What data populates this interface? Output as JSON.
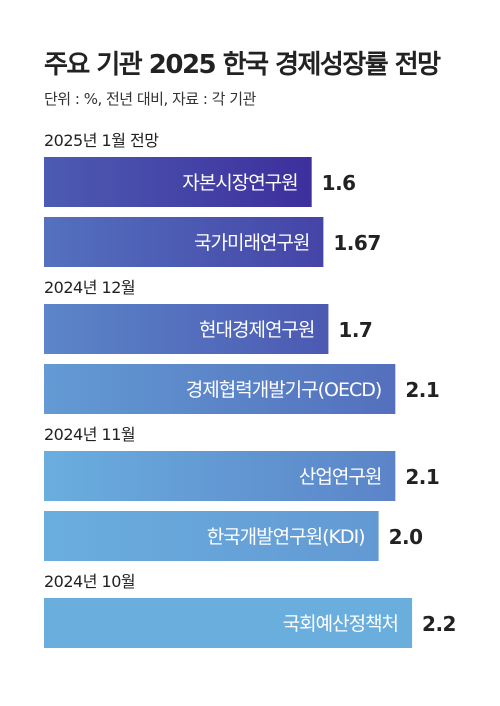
{
  "title": "주요 기관 2025 한국 경제성장률 전망",
  "subtitle": "단위 : %, 전년 대비, 자료 : 각 기관",
  "chart_data": {
    "type": "bar",
    "orientation": "horizontal",
    "title": "주요 기관 2025 한국 경제성장률 전망",
    "unit": "%",
    "xlim": [
      0,
      2.2
    ],
    "groups": [
      {
        "label": "2025년 1월 전망",
        "items": [
          {
            "category": "자본시장연구원",
            "value": 1.6,
            "value_label": "1.6"
          },
          {
            "category": "국가미래연구원",
            "value": 1.67,
            "value_label": "1.67"
          }
        ]
      },
      {
        "label": "2024년 12월",
        "items": [
          {
            "category": "현대경제연구원",
            "value": 1.7,
            "value_label": "1.7"
          },
          {
            "category": "경제협력개발기구(OECD)",
            "value": 2.1,
            "value_label": "2.1"
          }
        ]
      },
      {
        "label": "2024년 11월",
        "items": [
          {
            "category": "산업연구원",
            "value": 2.1,
            "value_label": "2.1"
          },
          {
            "category": "한국개발연구원(KDI)",
            "value": 2.0,
            "value_label": "2.0"
          }
        ]
      },
      {
        "label": "2024년 10월",
        "items": [
          {
            "category": "국회예산정책처",
            "value": 2.2,
            "value_label": "2.2"
          }
        ]
      }
    ],
    "gradient_colors": {
      "start": "#6aaede",
      "end": "#3d2f9c"
    }
  }
}
